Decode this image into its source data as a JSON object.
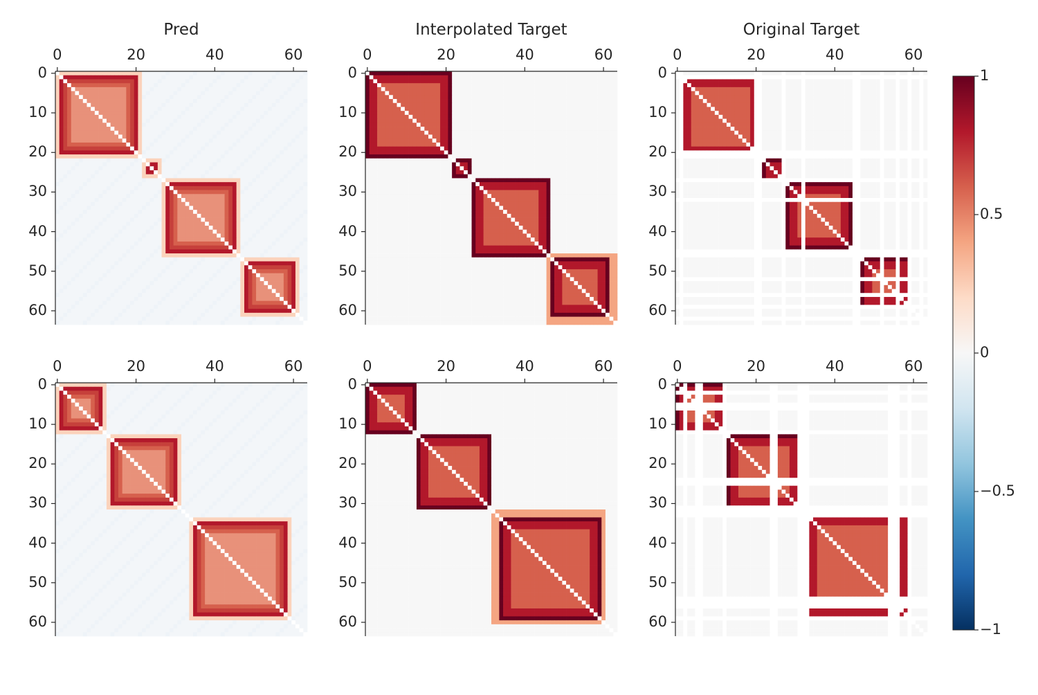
{
  "chart_data": {
    "type": "heatmap",
    "rows": 2,
    "columns": 3,
    "column_titles": [
      "Pred",
      "Interpolated Target",
      "Original Target"
    ],
    "axis": {
      "x_ticks": [
        0,
        20,
        40,
        60
      ],
      "y_ticks": [
        0,
        10,
        20,
        30,
        40,
        50,
        60
      ],
      "range": [
        0,
        63
      ],
      "x_ticks_position": "top",
      "y_inverted": true
    },
    "colorbar": {
      "colormap": "RdBu_r",
      "vmin": -1,
      "vmax": 1,
      "ticks": [
        1,
        0.5,
        0,
        -0.5,
        -1
      ],
      "tick_labels": [
        "1",
        "0.5",
        "0",
        "−0.5",
        "−1"
      ]
    },
    "colors": {
      "dark_red": "#67001f",
      "red": "#b2182b",
      "salmon": "#d6604d",
      "light_salmon": "#f4a582",
      "peach": "#fbd3bc",
      "blank": "#ffffff",
      "gray": "#f7f7f7",
      "pale_blue": "#eef3f8"
    },
    "rows_data": [
      {
        "blocks": [
          [
            0,
            21
          ],
          [
            22,
            26
          ],
          [
            27,
            46
          ],
          [
            47,
            61
          ]
        ],
        "interp_extra_band": [
          46,
          63
        ],
        "original_blocks": [
          [
            1,
            21
          ],
          [
            22,
            27
          ],
          [
            28,
            44
          ],
          [
            47,
            59
          ]
        ],
        "original_blank_lines": [
          1,
          20,
          21,
          27,
          32,
          45,
          46,
          52,
          56,
          59,
          62
        ]
      },
      {
        "blocks": [
          [
            0,
            12
          ],
          [
            13,
            31
          ],
          [
            34,
            59
          ]
        ],
        "interp_extra_band": [
          32,
          60
        ],
        "original_blocks": [
          [
            0,
            12
          ],
          [
            13,
            31
          ],
          [
            33,
            59
          ]
        ],
        "original_blank_lines": [
          2,
          5,
          6,
          12,
          24,
          25,
          31,
          32,
          33,
          54,
          55,
          56,
          59
        ]
      }
    ]
  }
}
